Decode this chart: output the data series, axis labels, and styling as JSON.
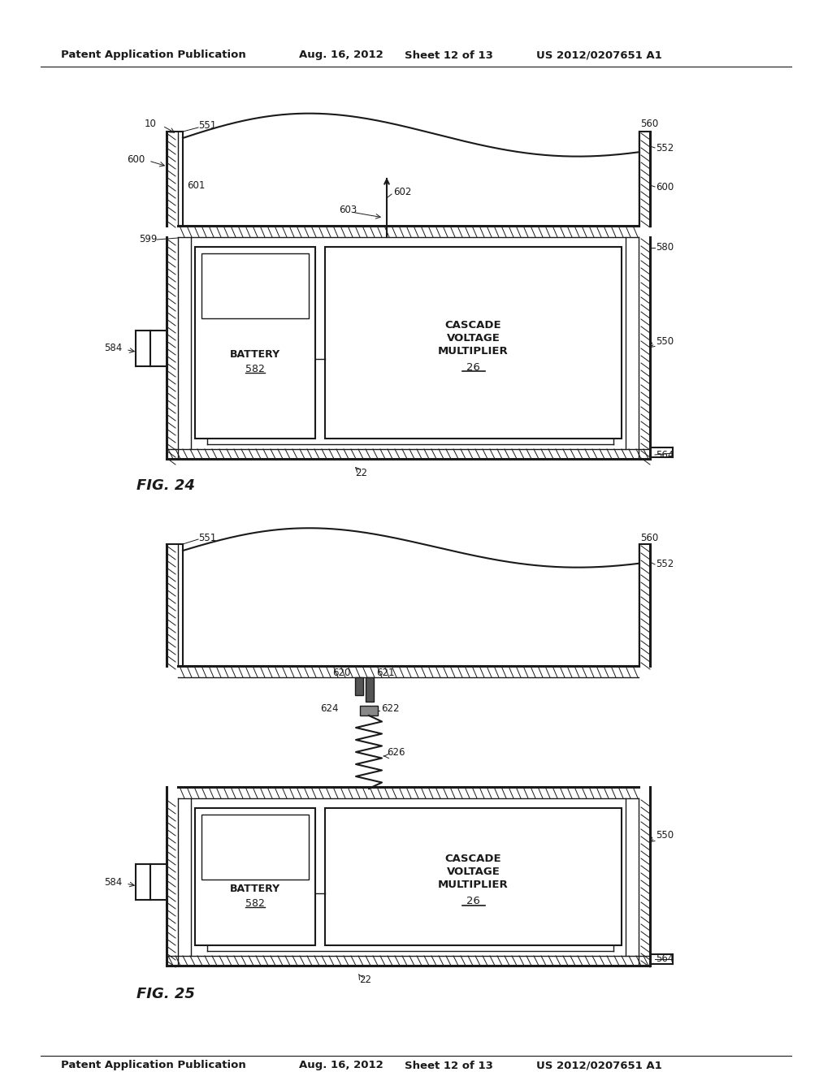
{
  "bg_color": "#ffffff",
  "line_color": "#1a1a1a",
  "text_color": "#1a1a1a",
  "header_left": "Patent Application Publication",
  "header_mid1": "Aug. 16, 2012",
  "header_mid2": "Sheet 12 of 13",
  "header_right": "US 2012/0207651 A1"
}
